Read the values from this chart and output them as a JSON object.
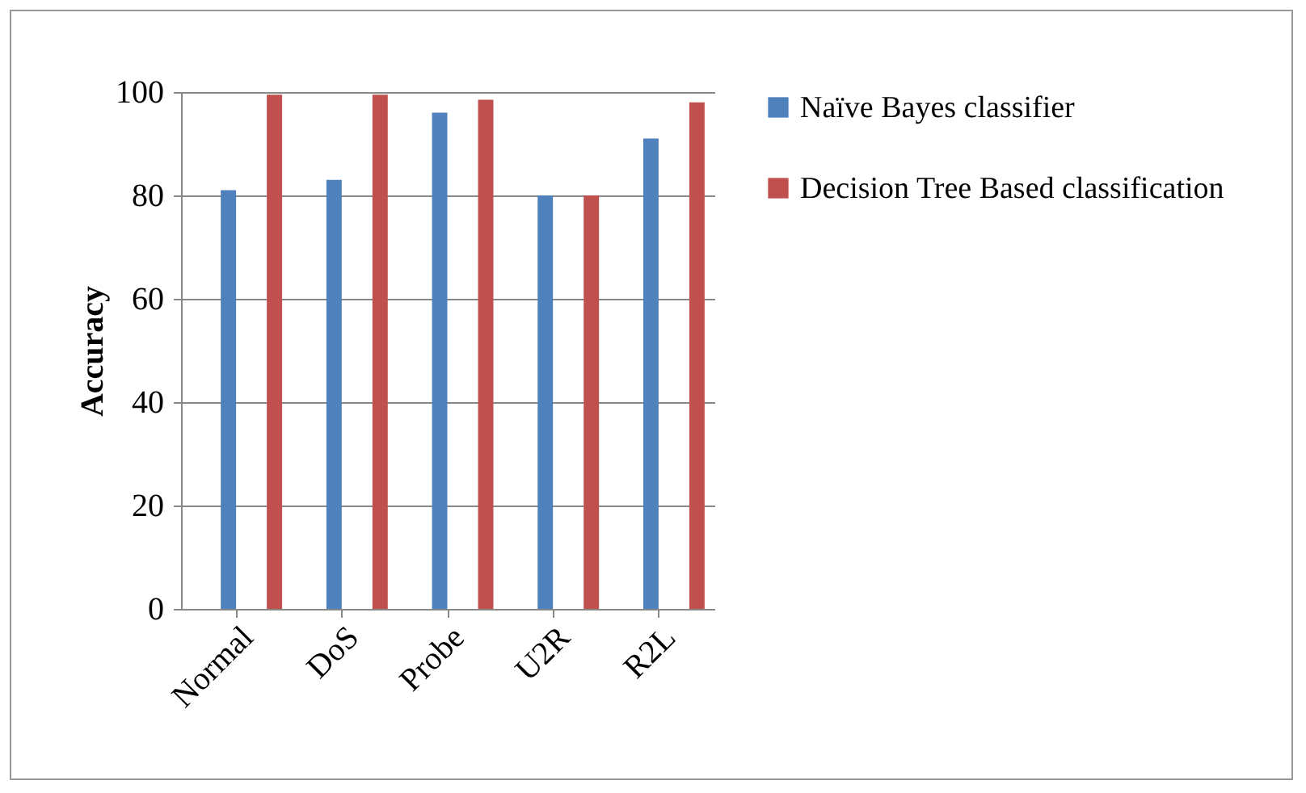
{
  "chart_data": {
    "type": "bar",
    "ylabel": "Accuracy",
    "categories": [
      "Normal",
      "DoS",
      "Probe",
      "U2R",
      "R2L"
    ],
    "series": [
      {
        "name": "Naïve Bayes classifier",
        "color": "#4f81bd",
        "values": [
          81,
          83,
          96,
          80,
          91
        ]
      },
      {
        "name": "Decision Tree Based classification",
        "color": "#c0504d",
        "values": [
          99.5,
          99.5,
          98.5,
          80,
          98
        ]
      }
    ],
    "ylim": [
      0,
      100
    ],
    "yticks": [
      0,
      20,
      40,
      60,
      80,
      100
    ],
    "grid": "y",
    "legend": "right"
  }
}
